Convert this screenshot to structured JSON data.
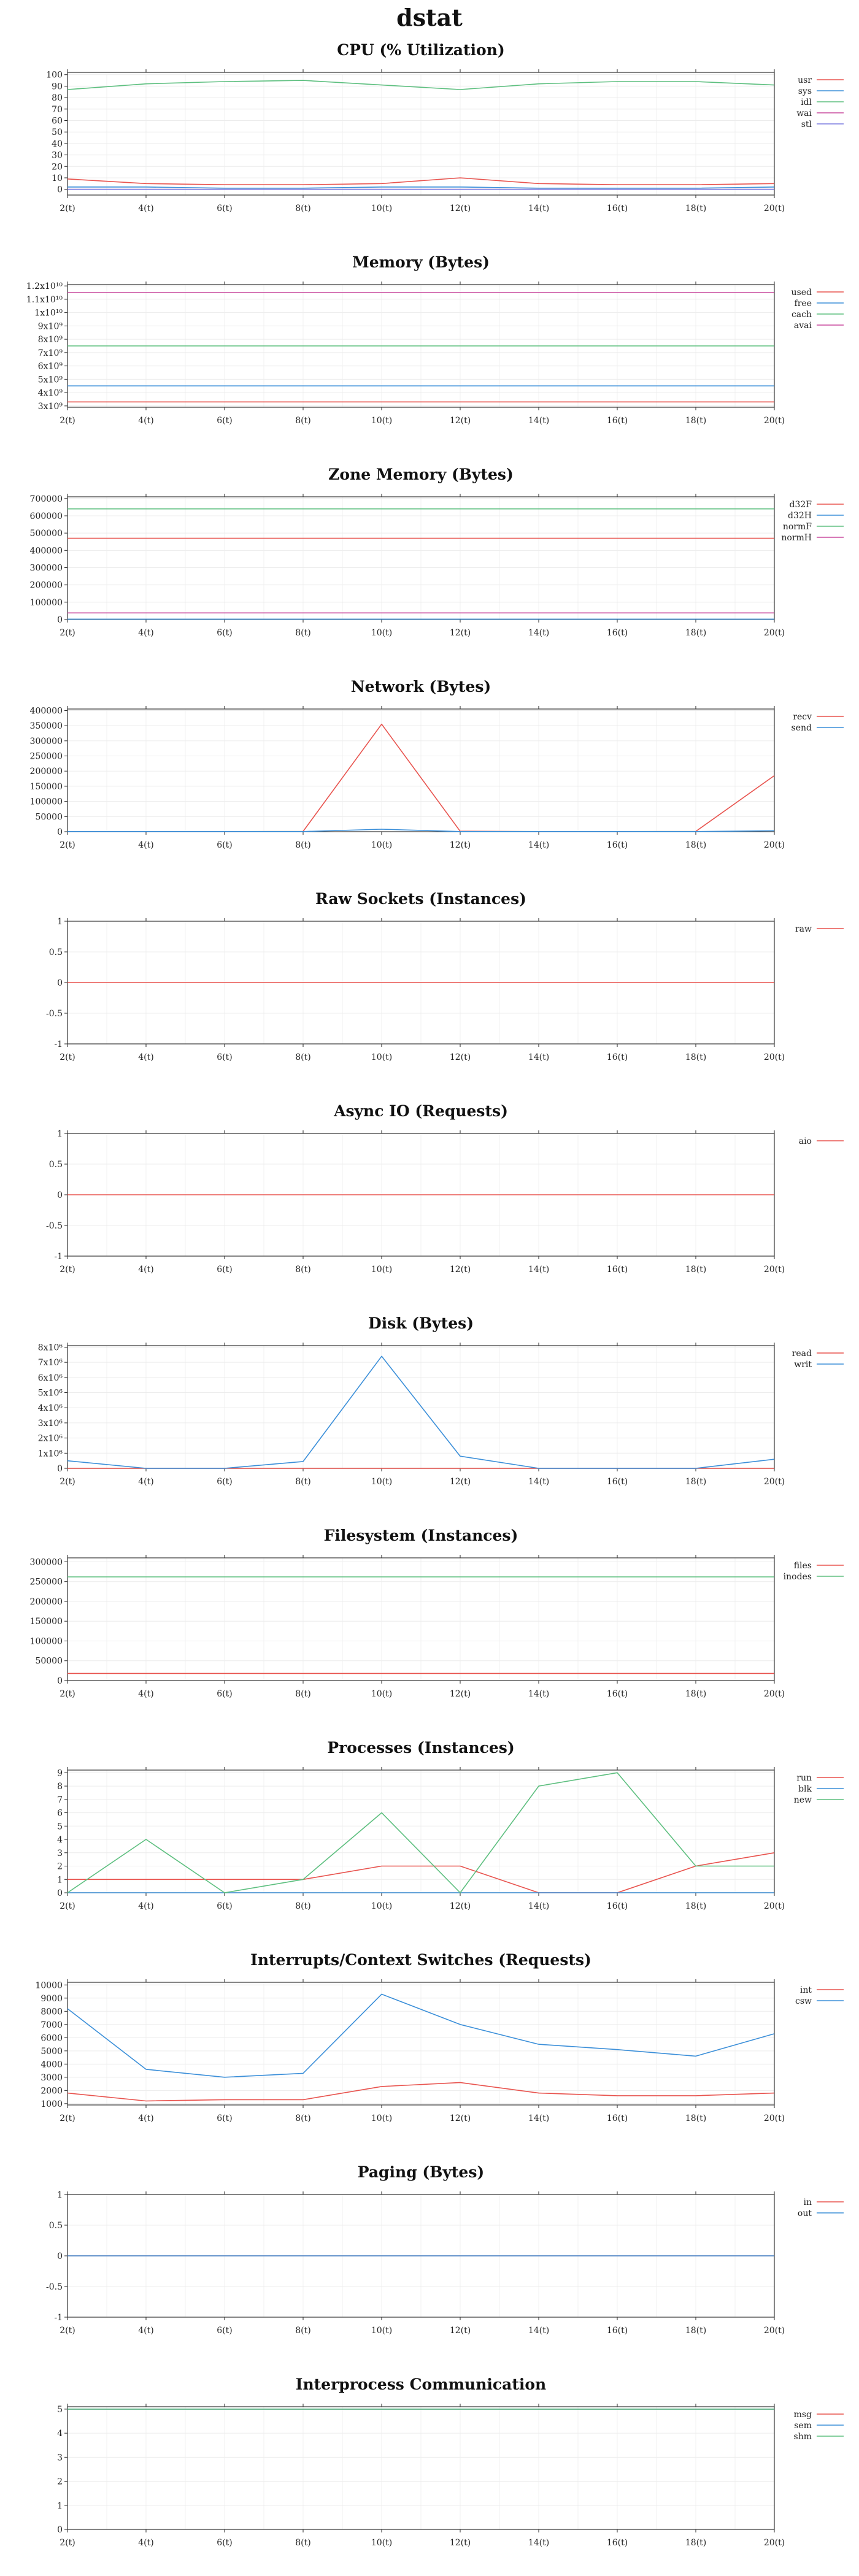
{
  "title": "dstat",
  "x_ticks": [
    "2(t)",
    "4(t)",
    "6(t)",
    "8(t)",
    "10(t)",
    "12(t)",
    "14(t)",
    "16(t)",
    "18(t)",
    "20(t)"
  ],
  "chart_data": [
    {
      "type": "line",
      "title": "CPU (% Utilization)",
      "x": [
        2,
        4,
        6,
        8,
        10,
        12,
        14,
        16,
        18,
        20
      ],
      "xlim": [
        2,
        20
      ],
      "ylim": [
        -5,
        102
      ],
      "yticks": [
        0,
        10,
        20,
        30,
        40,
        50,
        60,
        70,
        80,
        90,
        100
      ],
      "ytick_labels": [
        "0",
        "10",
        "20",
        "30",
        "40",
        "50",
        "60",
        "70",
        "80",
        "90",
        "100"
      ],
      "grid": true,
      "legend": "right",
      "series": [
        {
          "name": "usr",
          "color": "#e8534e",
          "values": [
            9,
            5,
            4,
            4,
            5,
            10,
            5,
            4,
            4,
            5
          ]
        },
        {
          "name": "sys",
          "color": "#3b8fd9",
          "values": [
            2,
            2,
            1,
            1,
            2,
            2,
            1,
            1,
            1,
            2
          ]
        },
        {
          "name": "idl",
          "color": "#5dbf7f",
          "values": [
            87,
            92,
            94,
            95,
            91,
            87,
            92,
            94,
            94,
            91
          ]
        },
        {
          "name": "wai",
          "color": "#c94a9e",
          "values": [
            0,
            0,
            0,
            0,
            0,
            0,
            0,
            0,
            0,
            0
          ]
        },
        {
          "name": "stl",
          "color": "#7c7ce0",
          "values": [
            0,
            0,
            0,
            0,
            0,
            0,
            0,
            0,
            0,
            0
          ]
        }
      ]
    },
    {
      "type": "line",
      "title": "Memory (Bytes)",
      "x": [
        2,
        4,
        6,
        8,
        10,
        12,
        14,
        16,
        18,
        20
      ],
      "xlim": [
        2,
        20
      ],
      "ylim": [
        2900000000,
        12100000000
      ],
      "yticks": [
        3000000000,
        4000000000,
        5000000000,
        6000000000,
        7000000000,
        8000000000,
        9000000000,
        10000000000,
        11000000000,
        12000000000
      ],
      "ytick_labels": [
        "3x10⁹",
        "4x10⁹",
        "5x10⁹",
        "6x10⁹",
        "7x10⁹",
        "8x10⁹",
        "9x10⁹",
        "1x10¹⁰",
        "1.1x10¹⁰",
        "1.2x10¹⁰"
      ],
      "grid": true,
      "legend": "right",
      "series": [
        {
          "name": "used",
          "color": "#e8534e",
          "values": [
            3300000000,
            3300000000,
            3300000000,
            3300000000,
            3300000000,
            3300000000,
            3300000000,
            3300000000,
            3300000000,
            3300000000
          ]
        },
        {
          "name": "free",
          "color": "#3b8fd9",
          "values": [
            4500000000,
            4500000000,
            4500000000,
            4500000000,
            4500000000,
            4500000000,
            4500000000,
            4500000000,
            4500000000,
            4500000000
          ]
        },
        {
          "name": "cach",
          "color": "#5dbf7f",
          "values": [
            7500000000,
            7500000000,
            7500000000,
            7500000000,
            7500000000,
            7500000000,
            7500000000,
            7500000000,
            7500000000,
            7500000000
          ]
        },
        {
          "name": "avai",
          "color": "#c94a9e",
          "values": [
            11500000000,
            11500000000,
            11500000000,
            11500000000,
            11500000000,
            11500000000,
            11500000000,
            11500000000,
            11500000000,
            11500000000
          ]
        }
      ]
    },
    {
      "type": "line",
      "title": "Zone Memory (Bytes)",
      "x": [
        2,
        4,
        6,
        8,
        10,
        12,
        14,
        16,
        18,
        20
      ],
      "xlim": [
        2,
        20
      ],
      "ylim": [
        0,
        710000
      ],
      "yticks": [
        0,
        100000,
        200000,
        300000,
        400000,
        500000,
        600000,
        700000
      ],
      "ytick_labels": [
        "0",
        "100000",
        "200000",
        "300000",
        "400000",
        "500000",
        "600000",
        "700000"
      ],
      "grid": true,
      "legend": "right",
      "series": [
        {
          "name": "d32F",
          "color": "#e8534e",
          "values": [
            470000,
            470000,
            470000,
            470000,
            470000,
            470000,
            470000,
            470000,
            470000,
            470000
          ]
        },
        {
          "name": "d32H",
          "color": "#3b8fd9",
          "values": [
            2000,
            2000,
            2000,
            2000,
            2000,
            2000,
            2000,
            2000,
            2000,
            2000
          ]
        },
        {
          "name": "normF",
          "color": "#5dbf7f",
          "values": [
            640000,
            640000,
            640000,
            640000,
            640000,
            640000,
            640000,
            640000,
            640000,
            640000
          ]
        },
        {
          "name": "normH",
          "color": "#c94a9e",
          "values": [
            38000,
            38000,
            38000,
            38000,
            38000,
            38000,
            38000,
            38000,
            38000,
            38000
          ]
        }
      ]
    },
    {
      "type": "line",
      "title": "Network (Bytes)",
      "x": [
        2,
        4,
        6,
        8,
        10,
        12,
        14,
        16,
        18,
        20
      ],
      "xlim": [
        2,
        20
      ],
      "ylim": [
        0,
        405000
      ],
      "yticks": [
        0,
        50000,
        100000,
        150000,
        200000,
        250000,
        300000,
        350000,
        400000
      ],
      "ytick_labels": [
        "0",
        "50000",
        "100000",
        "150000",
        "200000",
        "250000",
        "300000",
        "350000",
        "400000"
      ],
      "grid": true,
      "legend": "right",
      "series": [
        {
          "name": "recv",
          "color": "#e8534e",
          "values": [
            500,
            500,
            500,
            1000,
            355000,
            1500,
            500,
            500,
            1000,
            185000
          ]
        },
        {
          "name": "send",
          "color": "#3b8fd9",
          "values": [
            500,
            500,
            500,
            500,
            8000,
            500,
            500,
            500,
            500,
            3000
          ]
        }
      ]
    },
    {
      "type": "line",
      "title": "Raw Sockets (Instances)",
      "x": [
        2,
        4,
        6,
        8,
        10,
        12,
        14,
        16,
        18,
        20
      ],
      "xlim": [
        2,
        20
      ],
      "ylim": [
        -1,
        1
      ],
      "yticks": [
        -1,
        -0.5,
        0,
        0.5,
        1
      ],
      "ytick_labels": [
        "-1",
        "-0.5",
        "0",
        "0.5",
        "1"
      ],
      "grid": true,
      "legend": "right",
      "series": [
        {
          "name": "raw",
          "color": "#e8534e",
          "values": [
            0,
            0,
            0,
            0,
            0,
            0,
            0,
            0,
            0,
            0
          ]
        }
      ]
    },
    {
      "type": "line",
      "title": "Async IO (Requests)",
      "x": [
        2,
        4,
        6,
        8,
        10,
        12,
        14,
        16,
        18,
        20
      ],
      "xlim": [
        2,
        20
      ],
      "ylim": [
        -1,
        1
      ],
      "yticks": [
        -1,
        -0.5,
        0,
        0.5,
        1
      ],
      "ytick_labels": [
        "-1",
        "-0.5",
        "0",
        "0.5",
        "1"
      ],
      "grid": true,
      "legend": "right",
      "series": [
        {
          "name": "aio",
          "color": "#e8534e",
          "values": [
            0,
            0,
            0,
            0,
            0,
            0,
            0,
            0,
            0,
            0
          ]
        }
      ]
    },
    {
      "type": "line",
      "title": "Disk (Bytes)",
      "x": [
        2,
        4,
        6,
        8,
        10,
        12,
        14,
        16,
        18,
        20
      ],
      "xlim": [
        2,
        20
      ],
      "ylim": [
        0,
        8100000
      ],
      "yticks": [
        0,
        1000000,
        2000000,
        3000000,
        4000000,
        5000000,
        6000000,
        7000000,
        8000000
      ],
      "ytick_labels": [
        "0",
        "1x10⁶",
        "2x10⁶",
        "3x10⁶",
        "4x10⁶",
        "5x10⁶",
        "6x10⁶",
        "7x10⁶",
        "8x10⁶"
      ],
      "grid": true,
      "legend": "right",
      "series": [
        {
          "name": "read",
          "color": "#e8534e",
          "values": [
            0,
            0,
            0,
            0,
            0,
            0,
            0,
            0,
            0,
            0
          ]
        },
        {
          "name": "writ",
          "color": "#3b8fd9",
          "values": [
            500000,
            0,
            0,
            450000,
            7400000,
            800000,
            0,
            0,
            0,
            600000
          ]
        }
      ]
    },
    {
      "type": "line",
      "title": "Filesystem (Instances)",
      "x": [
        2,
        4,
        6,
        8,
        10,
        12,
        14,
        16,
        18,
        20
      ],
      "xlim": [
        2,
        20
      ],
      "ylim": [
        0,
        310000
      ],
      "yticks": [
        0,
        50000,
        100000,
        150000,
        200000,
        250000,
        300000
      ],
      "ytick_labels": [
        "0",
        "50000",
        "100000",
        "150000",
        "200000",
        "250000",
        "300000"
      ],
      "grid": true,
      "legend": "right",
      "series": [
        {
          "name": "files",
          "color": "#e8534e",
          "values": [
            18000,
            18000,
            18000,
            18000,
            18000,
            18000,
            18000,
            18000,
            18000,
            18000
          ]
        },
        {
          "name": "inodes",
          "color": "#5dbf7f",
          "values": [
            262000,
            262000,
            262000,
            262000,
            262000,
            262000,
            262000,
            262000,
            262000,
            262000
          ]
        }
      ]
    },
    {
      "type": "line",
      "title": "Processes (Instances)",
      "x": [
        2,
        4,
        6,
        8,
        10,
        12,
        14,
        16,
        18,
        20
      ],
      "xlim": [
        2,
        20
      ],
      "ylim": [
        0,
        9.2
      ],
      "yticks": [
        0,
        1,
        2,
        3,
        4,
        5,
        6,
        7,
        8,
        9
      ],
      "ytick_labels": [
        "0",
        "1",
        "2",
        "3",
        "4",
        "5",
        "6",
        "7",
        "8",
        "9"
      ],
      "grid": true,
      "legend": "right",
      "series": [
        {
          "name": "run",
          "color": "#e8534e",
          "values": [
            1,
            1,
            1,
            1,
            2,
            2,
            0,
            0,
            2,
            3
          ]
        },
        {
          "name": "blk",
          "color": "#3b8fd9",
          "values": [
            0,
            0,
            0,
            0,
            0,
            0,
            0,
            0,
            0,
            0
          ]
        },
        {
          "name": "new",
          "color": "#5dbf7f",
          "values": [
            0,
            4,
            0,
            1,
            6,
            0,
            8,
            9,
            2,
            2
          ]
        }
      ]
    },
    {
      "type": "line",
      "title": "Interrupts/Context Switches (Requests)",
      "x": [
        2,
        4,
        6,
        8,
        10,
        12,
        14,
        16,
        18,
        20
      ],
      "xlim": [
        2,
        20
      ],
      "ylim": [
        900,
        10200
      ],
      "yticks": [
        1000,
        2000,
        3000,
        4000,
        5000,
        6000,
        7000,
        8000,
        9000,
        10000
      ],
      "ytick_labels": [
        "1000",
        "2000",
        "3000",
        "4000",
        "5000",
        "6000",
        "7000",
        "8000",
        "9000",
        "10000"
      ],
      "grid": true,
      "legend": "right",
      "series": [
        {
          "name": "int",
          "color": "#e8534e",
          "values": [
            1800,
            1200,
            1300,
            1300,
            2300,
            2600,
            1800,
            1600,
            1600,
            1800
          ]
        },
        {
          "name": "csw",
          "color": "#3b8fd9",
          "values": [
            8200,
            3600,
            3000,
            3300,
            9300,
            7000,
            5500,
            5100,
            4600,
            6300
          ]
        }
      ]
    },
    {
      "type": "line",
      "title": "Paging (Bytes)",
      "x": [
        2,
        4,
        6,
        8,
        10,
        12,
        14,
        16,
        18,
        20
      ],
      "xlim": [
        2,
        20
      ],
      "ylim": [
        -1,
        1
      ],
      "yticks": [
        -1,
        -0.5,
        0,
        0.5,
        1
      ],
      "ytick_labels": [
        "-1",
        "-0.5",
        "0",
        "0.5",
        "1"
      ],
      "grid": true,
      "legend": "right",
      "series": [
        {
          "name": "in",
          "color": "#e8534e",
          "values": [
            0,
            0,
            0,
            0,
            0,
            0,
            0,
            0,
            0,
            0
          ]
        },
        {
          "name": "out",
          "color": "#3b8fd9",
          "values": [
            0,
            0,
            0,
            0,
            0,
            0,
            0,
            0,
            0,
            0
          ]
        }
      ]
    },
    {
      "type": "line",
      "title": "Interprocess Communication",
      "x": [
        2,
        4,
        6,
        8,
        10,
        12,
        14,
        16,
        18,
        20
      ],
      "xlim": [
        2,
        20
      ],
      "ylim": [
        0,
        5.1
      ],
      "yticks": [
        0,
        1,
        2,
        3,
        4,
        5
      ],
      "ytick_labels": [
        "0",
        "1",
        "2",
        "3",
        "4",
        "5"
      ],
      "grid": true,
      "legend": "right",
      "series": [
        {
          "name": "msg",
          "color": "#e8534e",
          "values": [
            5,
            5,
            5,
            5,
            5,
            5,
            5,
            5,
            5,
            5
          ]
        },
        {
          "name": "sem",
          "color": "#3b8fd9",
          "values": [
            5,
            5,
            5,
            5,
            5,
            5,
            5,
            5,
            5,
            5
          ]
        },
        {
          "name": "shm",
          "color": "#5dbf7f",
          "values": [
            5,
            5,
            5,
            5,
            5,
            5,
            5,
            5,
            5,
            5
          ]
        }
      ]
    }
  ]
}
